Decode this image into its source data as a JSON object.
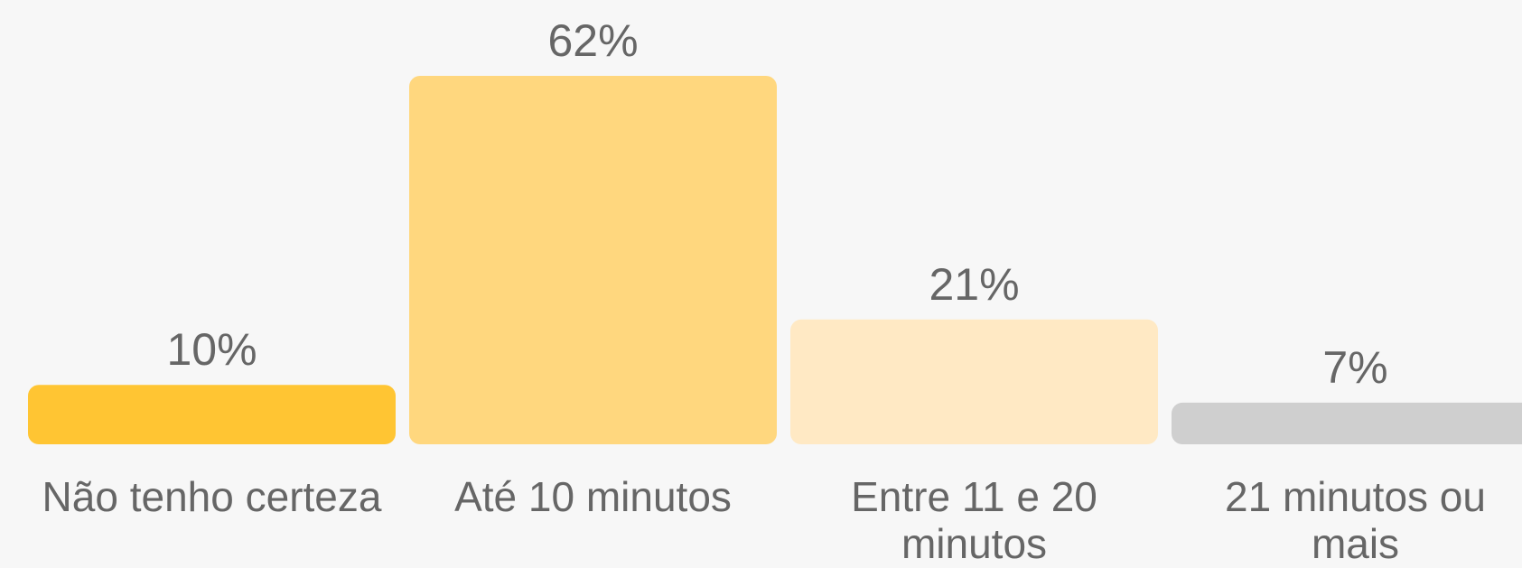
{
  "chart_data": {
    "type": "bar",
    "categories": [
      "Não tenho certeza",
      "Até 10 minutos",
      "Entre 11 e 20 minutos",
      "21 minutos ou mais"
    ],
    "values": [
      10,
      62,
      21,
      7
    ],
    "value_labels": [
      "10%",
      "62%",
      "21%",
      "7%"
    ],
    "colors": [
      "#ffc533",
      "#ffd77e",
      "#ffe9c4",
      "#cfcfcf"
    ]
  }
}
